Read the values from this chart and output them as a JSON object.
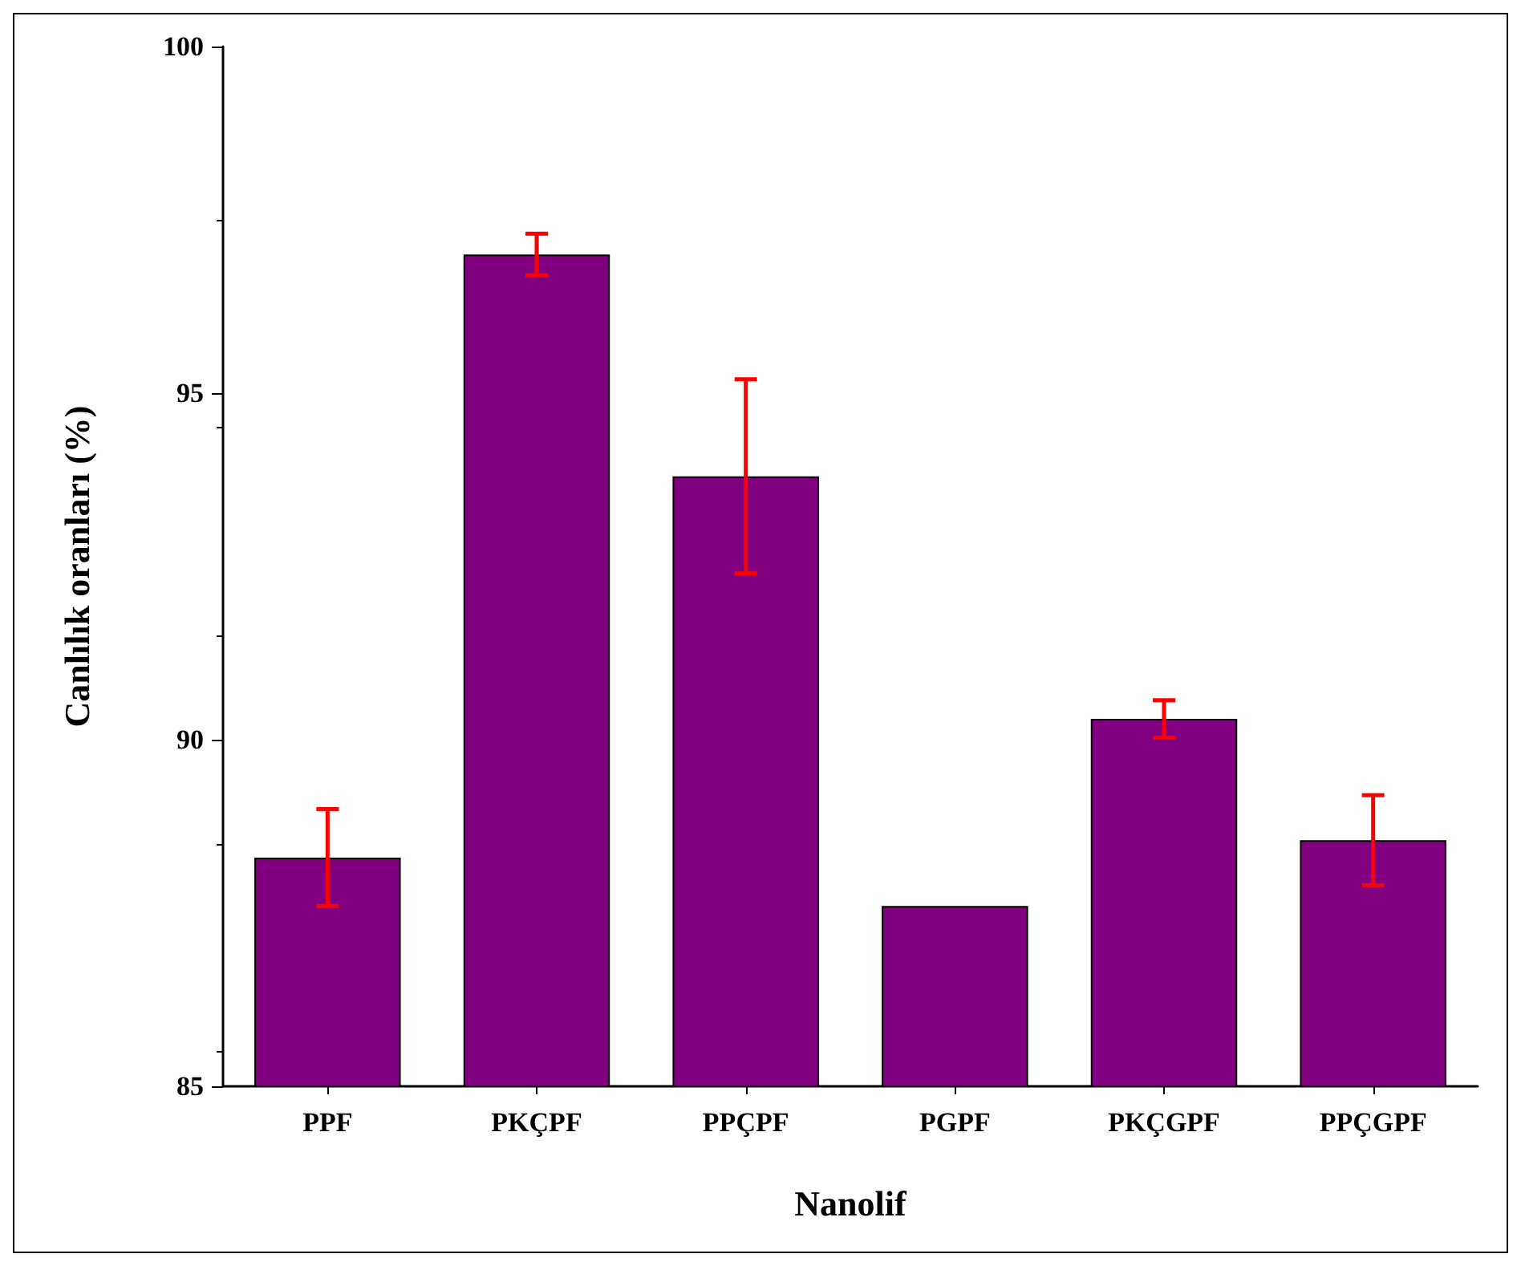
{
  "chart_data": {
    "type": "bar",
    "xlabel": "Nanolif",
    "ylabel": "Canlılık oranları (%)",
    "categories": [
      "PPF",
      "PKÇPF",
      "PPÇPF",
      "PGPF",
      "PKÇGPF",
      "PPÇGPF"
    ],
    "values": [
      88.3,
      97.0,
      93.8,
      87.6,
      90.3,
      88.55
    ],
    "errors": [
      0.7,
      0.3,
      1.4,
      null,
      0.27,
      0.65
    ],
    "color": "#800080",
    "ylim": [
      85,
      100
    ],
    "yticks": [
      85,
      90,
      95,
      100
    ],
    "grid": false
  }
}
